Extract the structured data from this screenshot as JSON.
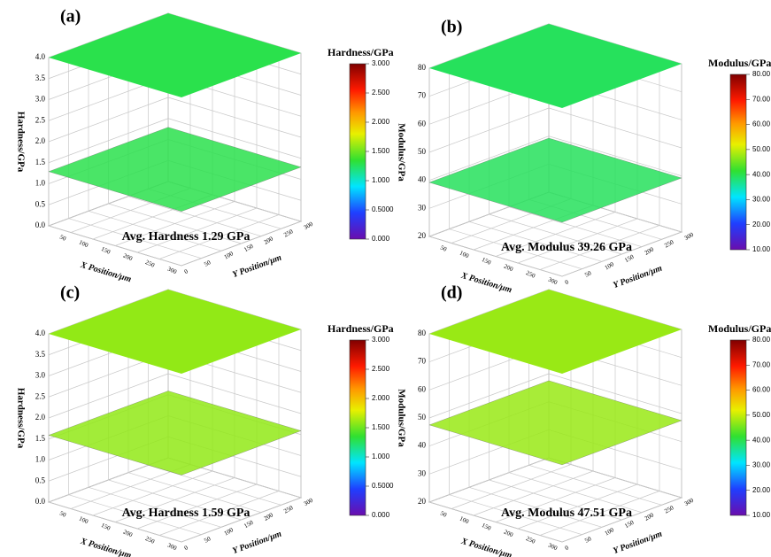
{
  "chart_data": [
    {
      "type": "surface3d",
      "panel_label": "(a)",
      "z_label": "Hardness/GPa",
      "x_label": "X Position/μm",
      "y_label": "Y Position/μm",
      "zlim": [
        0,
        4
      ],
      "zticks": [
        {
          "value": 0,
          "label": "0.0"
        },
        0.5,
        {
          "value": 1,
          "label": "1.0"
        },
        1.5,
        {
          "value": 2,
          "label": "2.0"
        },
        2.5,
        {
          "value": 3,
          "label": "3.0"
        },
        3.5,
        {
          "value": 4,
          "label": "4.0"
        }
      ],
      "xlim": [
        0,
        300
      ],
      "xticks": [
        50,
        100,
        150,
        200,
        250,
        300
      ],
      "ylim": [
        0,
        300
      ],
      "yticks": [
        0,
        50,
        100,
        150,
        200,
        250,
        300
      ],
      "colorbar_title": "Hardness/GPa",
      "colorbar_ticks": [
        {
          "value": 0,
          "label": "0.000"
        },
        {
          "value": 0.5,
          "label": "0.5000"
        },
        {
          "value": 1,
          "label": "1.000"
        },
        {
          "value": 1.5,
          "label": "1.500"
        },
        {
          "value": 2,
          "label": "2.000"
        },
        {
          "value": 2.5,
          "label": "2.500"
        },
        {
          "value": 3,
          "label": "3.000"
        }
      ],
      "annotation": {
        "value": 1.29,
        "label": "Avg. Hardness 1.29 GPa"
      }
    },
    {
      "type": "surface3d",
      "panel_label": "(b)",
      "z_label": "Modulus/GPa",
      "x_label": "X Position/μm",
      "y_label": "Y Position/μm",
      "zlim": [
        20,
        80
      ],
      "zticks": [
        20,
        30,
        40,
        50,
        60,
        70,
        80
      ],
      "xlim": [
        0,
        300
      ],
      "xticks": [
        50,
        100,
        150,
        200,
        250,
        300
      ],
      "ylim": [
        0,
        300
      ],
      "yticks": [
        0,
        50,
        100,
        150,
        200,
        250,
        300
      ],
      "colorbar_title": "Modulus/GPa",
      "colorbar_ticks": [
        {
          "value": 10,
          "label": "10.00"
        },
        {
          "value": 20,
          "label": "20.00"
        },
        {
          "value": 30,
          "label": "30.00"
        },
        {
          "value": 40,
          "label": "40.00"
        },
        {
          "value": 50,
          "label": "50.00"
        },
        {
          "value": 60,
          "label": "60.00"
        },
        {
          "value": 70,
          "label": "70.00"
        },
        {
          "value": 80,
          "label": "80.00"
        }
      ],
      "annotation": {
        "value": 39.26,
        "label": "Avg. Modulus 39.26 GPa"
      }
    },
    {
      "type": "surface3d",
      "panel_label": "(c)",
      "z_label": "Hardness/GPa",
      "x_label": "X Position/μm",
      "y_label": "Y Position/μm",
      "zlim": [
        0,
        4
      ],
      "zticks": [
        {
          "value": 0,
          "label": "0.0"
        },
        0.5,
        {
          "value": 1,
          "label": "1.0"
        },
        1.5,
        {
          "value": 2,
          "label": "2.0"
        },
        2.5,
        {
          "value": 3,
          "label": "3.0"
        },
        3.5,
        {
          "value": 4,
          "label": "4.0"
        }
      ],
      "xlim": [
        0,
        300
      ],
      "xticks": [
        50,
        100,
        150,
        200,
        250,
        300
      ],
      "ylim": [
        0,
        300
      ],
      "yticks": [
        0,
        50,
        100,
        150,
        200,
        250,
        300
      ],
      "colorbar_title": "Hardness/GPa",
      "colorbar_ticks": [
        {
          "value": 0,
          "label": "0.000"
        },
        {
          "value": 0.5,
          "label": "0.5000"
        },
        {
          "value": 1,
          "label": "1.000"
        },
        {
          "value": 1.5,
          "label": "1.500"
        },
        {
          "value": 2,
          "label": "2.000"
        },
        {
          "value": 2.5,
          "label": "2.500"
        },
        {
          "value": 3,
          "label": "3.000"
        }
      ],
      "annotation": {
        "value": 1.59,
        "label": "Avg. Hardness 1.59 GPa"
      }
    },
    {
      "type": "surface3d",
      "panel_label": "(d)",
      "z_label": "Modulus/GPa",
      "x_label": "X Position/μm",
      "y_label": "Y Position/μm",
      "zlim": [
        20,
        80
      ],
      "zticks": [
        20,
        30,
        40,
        50,
        60,
        70,
        80
      ],
      "xlim": [
        0,
        300
      ],
      "xticks": [
        50,
        100,
        150,
        200,
        250,
        300
      ],
      "ylim": [
        0,
        300
      ],
      "yticks": [
        0,
        50,
        100,
        150,
        200,
        250,
        300
      ],
      "colorbar_title": "Modulus/GPa",
      "colorbar_ticks": [
        {
          "value": 10,
          "label": "10.00"
        },
        {
          "value": 20,
          "label": "20.00"
        },
        {
          "value": 30,
          "label": "30.00"
        },
        {
          "value": 40,
          "label": "40.00"
        },
        {
          "value": 50,
          "label": "50.00"
        },
        {
          "value": 60,
          "label": "60.00"
        },
        {
          "value": 70,
          "label": "70.00"
        },
        {
          "value": 80,
          "label": "80.00"
        }
      ],
      "annotation": {
        "value": 47.51,
        "label": "Avg. Modulus 47.51 GPa"
      }
    }
  ]
}
